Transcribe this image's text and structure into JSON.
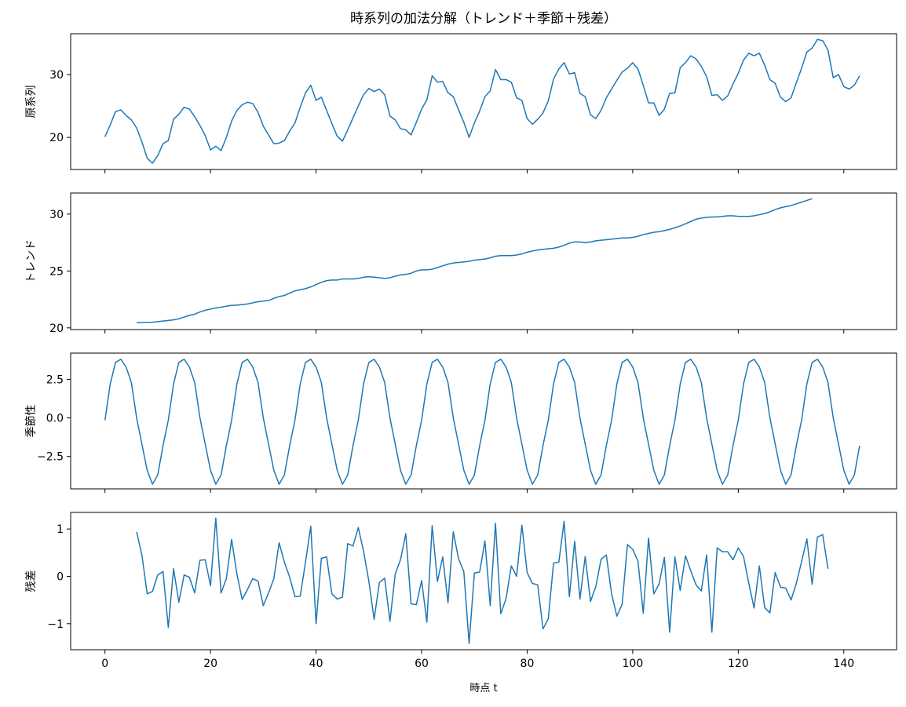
{
  "chart_data": {
    "type": "line",
    "title": "時系列の加法分解（トレンド＋季節＋残差）",
    "xlabel": "時点 t",
    "xlim": [
      -6.5,
      150
    ],
    "xticks": [
      0,
      20,
      40,
      60,
      80,
      100,
      120,
      140
    ],
    "line_color": "#1f77b4",
    "grid": false,
    "panels": [
      {
        "id": "observed",
        "ylabel": "原系列",
        "ylim": [
          14.9,
          36.5
        ],
        "yticks": [
          20,
          30
        ],
        "series": [
          {
            "x_start": 0,
            "values": [
              20.1,
              22.0,
              24.1,
              24.4,
              23.5,
              22.8,
              21.5,
              19.3,
              16.7,
              15.9,
              17.1,
              19.0,
              19.5,
              22.9,
              23.7,
              24.8,
              24.5,
              23.3,
              21.9,
              20.3,
              18.0,
              18.6,
              17.9,
              20.0,
              22.6,
              24.3,
              25.2,
              25.6,
              25.4,
              24.0,
              21.8,
              20.4,
              19.0,
              19.1,
              19.5,
              21.0,
              22.3,
              24.8,
              27.1,
              28.3,
              25.9,
              26.4,
              24.3,
              22.2,
              20.2,
              19.4,
              21.2,
              23.1,
              25.0,
              26.8,
              27.8,
              27.3,
              27.7,
              26.8,
              23.4,
              22.8,
              21.4,
              21.2,
              20.4,
              22.4,
              24.5,
              26.0,
              29.8,
              28.8,
              28.9,
              27.1,
              26.5,
              24.4,
              22.4,
              20.0,
              22.3,
              24.2,
              26.5,
              27.4,
              30.8,
              29.2,
              29.2,
              28.8,
              26.3,
              25.9,
              23.0,
              22.1,
              22.9,
              23.9,
              25.8,
              29.3,
              30.9,
              31.9,
              30.1,
              30.3,
              27.0,
              26.5,
              23.6,
              23.0,
              24.3,
              26.3,
              27.7,
              29.1,
              30.4,
              31.0,
              31.9,
              30.9,
              28.3,
              25.5,
              25.5,
              23.5,
              24.5,
              27.0,
              27.1,
              31.1,
              31.9,
              33.0,
              32.5,
              31.3,
              29.7,
              26.7,
              26.8,
              25.9,
              26.6,
              28.5,
              30.2,
              32.3,
              33.4,
              33.0,
              33.4,
              31.5,
              29.2,
              28.6,
              26.4,
              25.7,
              26.3,
              28.7,
              31.0,
              33.6,
              34.2,
              35.6,
              35.4,
              33.9,
              29.5,
              30.0,
              28.1,
              27.7,
              28.3,
              29.8
            ]
          }
        ]
      },
      {
        "id": "trend",
        "ylabel": "トレンド",
        "ylim": [
          19.85,
          31.85
        ],
        "yticks": [
          20,
          25,
          30
        ],
        "series": [
          {
            "x_start": 6,
            "values": [
              20.45,
              20.47,
              20.48,
              20.5,
              20.55,
              20.6,
              20.65,
              20.7,
              20.8,
              20.95,
              21.1,
              21.2,
              21.4,
              21.55,
              21.65,
              21.75,
              21.82,
              21.9,
              21.98,
              22.0,
              22.05,
              22.1,
              22.2,
              22.3,
              22.35,
              22.4,
              22.6,
              22.75,
              22.85,
              23.05,
              23.25,
              23.35,
              23.45,
              23.6,
              23.8,
              24.0,
              24.15,
              24.2,
              24.2,
              24.3,
              24.3,
              24.3,
              24.35,
              24.45,
              24.5,
              24.45,
              24.4,
              24.35,
              24.4,
              24.55,
              24.65,
              24.7,
              24.8,
              25.0,
              25.1,
              25.1,
              25.15,
              25.3,
              25.45,
              25.6,
              25.7,
              25.75,
              25.8,
              25.85,
              25.95,
              26.0,
              26.05,
              26.15,
              26.3,
              26.35,
              26.35,
              26.35,
              26.4,
              26.5,
              26.65,
              26.75,
              26.85,
              26.9,
              26.95,
              27.0,
              27.1,
              27.25,
              27.45,
              27.55,
              27.55,
              27.5,
              27.55,
              27.65,
              27.7,
              27.75,
              27.8,
              27.85,
              27.9,
              27.9,
              27.95,
              28.05,
              28.2,
              28.3,
              28.4,
              28.45,
              28.55,
              28.65,
              28.8,
              28.95,
              29.15,
              29.35,
              29.55,
              29.65,
              29.7,
              29.75,
              29.75,
              29.8,
              29.85,
              29.85,
              29.8,
              29.8,
              29.8,
              29.85,
              29.95,
              30.05,
              30.2,
              30.4,
              30.55,
              30.65,
              30.75,
              30.9,
              31.05,
              31.2,
              31.35
            ]
          }
        ]
      },
      {
        "id": "seasonal",
        "ylabel": "季節性",
        "ylim": [
          -4.6,
          4.2
        ],
        "yticks": [
          -2.5,
          0.0,
          2.5
        ],
        "series": [
          {
            "x_start": 0,
            "values": [
              -0.15,
              2.2,
              3.6,
              3.8,
              3.3,
              2.3,
              0.0,
              -1.7,
              -3.4,
              -4.3,
              -3.7,
              -1.8,
              -0.15,
              2.2,
              3.6,
              3.8,
              3.3,
              2.3,
              0.0,
              -1.7,
              -3.4,
              -4.3,
              -3.7,
              -1.8,
              -0.15,
              2.2,
              3.6,
              3.8,
              3.3,
              2.3,
              0.0,
              -1.7,
              -3.4,
              -4.3,
              -3.7,
              -1.8,
              -0.15,
              2.2,
              3.6,
              3.8,
              3.3,
              2.3,
              0.0,
              -1.7,
              -3.4,
              -4.3,
              -3.7,
              -1.8,
              -0.15,
              2.2,
              3.6,
              3.8,
              3.3,
              2.3,
              0.0,
              -1.7,
              -3.4,
              -4.3,
              -3.7,
              -1.8,
              -0.15,
              2.2,
              3.6,
              3.8,
              3.3,
              2.3,
              0.0,
              -1.7,
              -3.4,
              -4.3,
              -3.7,
              -1.8,
              -0.15,
              2.2,
              3.6,
              3.8,
              3.3,
              2.3,
              0.0,
              -1.7,
              -3.4,
              -4.3,
              -3.7,
              -1.8,
              -0.15,
              2.2,
              3.6,
              3.8,
              3.3,
              2.3,
              0.0,
              -1.7,
              -3.4,
              -4.3,
              -3.7,
              -1.8,
              -0.15,
              2.2,
              3.6,
              3.8,
              3.3,
              2.3,
              0.0,
              -1.7,
              -3.4,
              -4.3,
              -3.7,
              -1.8,
              -0.15,
              2.2,
              3.6,
              3.8,
              3.3,
              2.3,
              0.0,
              -1.7,
              -3.4,
              -4.3,
              -3.7,
              -1.8,
              -0.15,
              2.2,
              3.6,
              3.8,
              3.3,
              2.3,
              0.0,
              -1.7,
              -3.4,
              -4.3,
              -3.7,
              -1.8,
              -0.15,
              2.2,
              3.6,
              3.8,
              3.3,
              2.3,
              0.0,
              -1.7,
              -3.4,
              -4.3,
              -3.7,
              -1.8
            ]
          }
        ]
      },
      {
        "id": "residual",
        "ylabel": "残差",
        "ylim": [
          -1.55,
          1.35
        ],
        "yticks": [
          -1,
          0,
          1
        ],
        "series": [
          {
            "x_start": 6,
            "values": [
              0.94,
              0.45,
              -0.37,
              -0.32,
              0.03,
              0.1,
              -1.08,
              0.16,
              -0.55,
              0.03,
              -0.02,
              -0.35,
              0.34,
              0.35,
              -0.2,
              1.23,
              -0.35,
              -0.05,
              0.78,
              0.05,
              -0.49,
              -0.28,
              -0.05,
              -0.1,
              -0.62,
              -0.35,
              -0.05,
              0.71,
              0.3,
              -0.02,
              -0.43,
              -0.42,
              0.3,
              1.06,
              -1.0,
              0.38,
              0.41,
              -0.37,
              -0.48,
              -0.44,
              0.69,
              0.64,
              1.03,
              0.53,
              -0.1,
              -0.91,
              -0.13,
              -0.04,
              -0.95,
              0.05,
              0.35,
              0.9,
              -0.58,
              -0.6,
              -0.09,
              -0.97,
              1.07,
              -0.11,
              0.41,
              -0.56,
              0.94,
              0.37,
              0.1,
              -1.42,
              0.07,
              0.09,
              0.75,
              -0.62,
              1.12,
              -0.79,
              -0.47,
              0.22,
              0.0,
              1.08,
              0.08,
              -0.15,
              -0.18,
              -1.11,
              -0.9,
              0.28,
              0.3,
              1.16,
              -0.43,
              0.74,
              -0.48,
              0.42,
              -0.53,
              -0.22,
              0.36,
              0.45,
              -0.37,
              -0.84,
              -0.59,
              0.67,
              0.57,
              0.32,
              -0.78,
              0.81,
              -0.37,
              -0.16,
              0.4,
              -1.18,
              0.41,
              -0.3,
              0.43,
              0.12,
              -0.18,
              -0.31,
              0.45,
              -1.18,
              0.6,
              0.52,
              0.52,
              0.35,
              0.6,
              0.42,
              -0.15,
              -0.67,
              0.22,
              -0.66,
              -0.77,
              0.08,
              -0.23,
              -0.25,
              -0.5,
              -0.15,
              0.31,
              0.79,
              -0.17,
              0.83,
              0.88,
              0.16
            ]
          }
        ]
      }
    ]
  }
}
